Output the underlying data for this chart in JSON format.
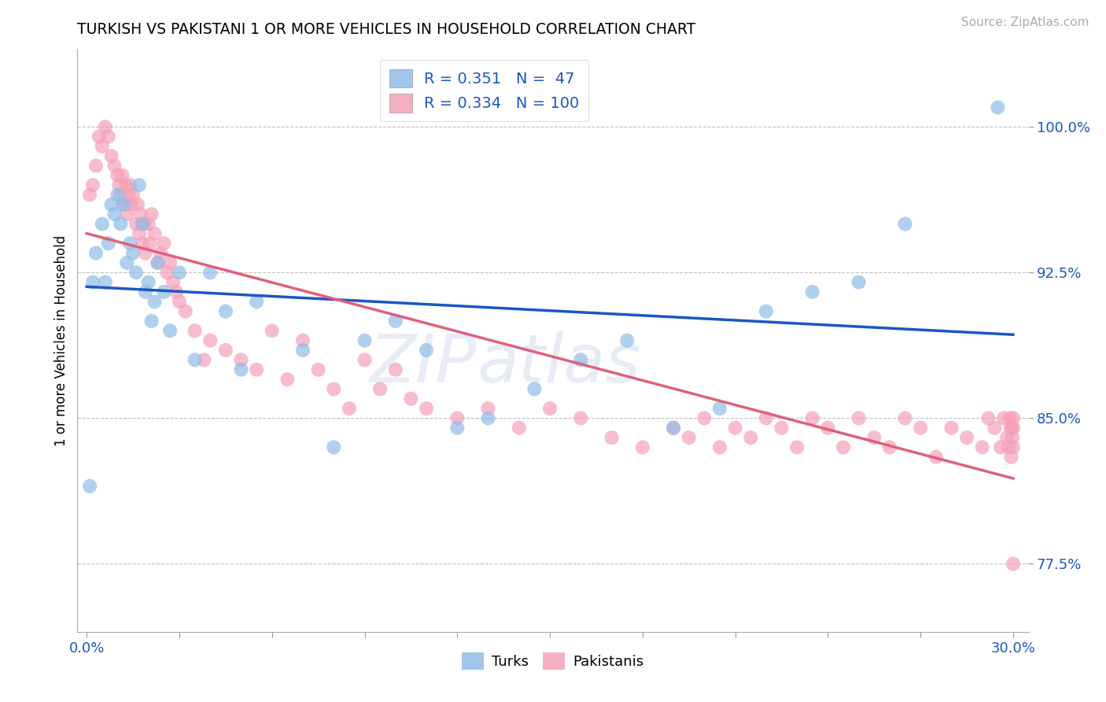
{
  "title": "TURKISH VS PAKISTANI 1 OR MORE VEHICLES IN HOUSEHOLD CORRELATION CHART",
  "source": "Source: ZipAtlas.com",
  "ylabel": "1 or more Vehicles in Household",
  "xlim_min": -0.3,
  "xlim_max": 30.5,
  "ylim_min": 74.0,
  "ylim_max": 104.0,
  "yticks": [
    77.5,
    85.0,
    92.5,
    100.0
  ],
  "ytick_labels": [
    "77.5%",
    "85.0%",
    "92.5%",
    "100.0%"
  ],
  "xtick_vals": [
    0.0,
    3.0,
    6.0,
    9.0,
    12.0,
    15.0,
    18.0,
    21.0,
    24.0,
    27.0,
    30.0
  ],
  "xtick_labels_show": [
    "0.0%",
    "",
    "",
    "",
    "",
    "",
    "",
    "",
    "",
    "",
    "30.0%"
  ],
  "turks_R": 0.351,
  "turks_N": 47,
  "pakis_R": 0.334,
  "pakis_N": 100,
  "turks_color": "#90bce8",
  "pakis_color": "#f5a0b8",
  "turks_line_color": "#1a56c4",
  "pakis_line_color": "#e0607a",
  "legend_label_turks": "Turks",
  "legend_label_pakis": "Pakistanis",
  "turks_x": [
    0.1,
    0.2,
    0.3,
    0.5,
    0.6,
    0.7,
    0.8,
    0.9,
    1.0,
    1.1,
    1.2,
    1.3,
    1.4,
    1.5,
    1.6,
    1.7,
    1.8,
    1.9,
    2.0,
    2.1,
    2.2,
    2.3,
    2.5,
    2.7,
    3.0,
    3.5,
    4.0,
    4.5,
    5.0,
    5.5,
    7.0,
    8.0,
    9.0,
    10.0,
    11.0,
    12.0,
    13.0,
    14.5,
    16.0,
    17.5,
    19.0,
    20.5,
    22.0,
    23.5,
    25.0,
    26.5,
    29.5
  ],
  "turks_y": [
    81.5,
    92.0,
    93.5,
    95.0,
    92.0,
    94.0,
    96.0,
    95.5,
    96.5,
    95.0,
    96.0,
    93.0,
    94.0,
    93.5,
    92.5,
    97.0,
    95.0,
    91.5,
    92.0,
    90.0,
    91.0,
    93.0,
    91.5,
    89.5,
    92.5,
    88.0,
    92.5,
    90.5,
    87.5,
    91.0,
    88.5,
    83.5,
    89.0,
    90.0,
    88.5,
    84.5,
    85.0,
    86.5,
    88.0,
    89.0,
    84.5,
    85.5,
    90.5,
    91.5,
    92.0,
    95.0,
    101.0
  ],
  "pakis_x": [
    0.1,
    0.2,
    0.3,
    0.4,
    0.5,
    0.6,
    0.7,
    0.8,
    0.9,
    1.0,
    1.05,
    1.1,
    1.15,
    1.2,
    1.25,
    1.3,
    1.35,
    1.4,
    1.45,
    1.5,
    1.6,
    1.65,
    1.7,
    1.75,
    1.8,
    1.85,
    1.9,
    2.0,
    2.05,
    2.1,
    2.2,
    2.3,
    2.4,
    2.5,
    2.6,
    2.7,
    2.8,
    2.9,
    3.0,
    3.2,
    3.5,
    3.8,
    4.0,
    4.5,
    5.0,
    5.5,
    6.0,
    6.5,
    7.0,
    7.5,
    8.0,
    8.5,
    9.0,
    9.5,
    10.0,
    10.5,
    11.0,
    12.0,
    13.0,
    14.0,
    15.0,
    16.0,
    17.0,
    18.0,
    19.0,
    19.5,
    20.0,
    20.5,
    21.0,
    21.5,
    22.0,
    22.5,
    23.0,
    23.5,
    24.0,
    24.5,
    25.0,
    25.5,
    26.0,
    26.5,
    27.0,
    27.5,
    28.0,
    28.5,
    29.0,
    29.2,
    29.4,
    29.6,
    29.7,
    29.8,
    29.85,
    29.9,
    29.92,
    29.94,
    29.96,
    29.98,
    30.0,
    30.0,
    30.0,
    30.0
  ],
  "pakis_y": [
    96.5,
    97.0,
    98.0,
    99.5,
    99.0,
    100.0,
    99.5,
    98.5,
    98.0,
    97.5,
    97.0,
    96.5,
    97.5,
    96.0,
    97.0,
    95.5,
    96.5,
    97.0,
    96.0,
    96.5,
    95.0,
    96.0,
    94.5,
    95.5,
    94.0,
    95.0,
    93.5,
    95.0,
    94.0,
    95.5,
    94.5,
    93.0,
    93.5,
    94.0,
    92.5,
    93.0,
    92.0,
    91.5,
    91.0,
    90.5,
    89.5,
    88.0,
    89.0,
    88.5,
    88.0,
    87.5,
    89.5,
    87.0,
    89.0,
    87.5,
    86.5,
    85.5,
    88.0,
    86.5,
    87.5,
    86.0,
    85.5,
    85.0,
    85.5,
    84.5,
    85.5,
    85.0,
    84.0,
    83.5,
    84.5,
    84.0,
    85.0,
    83.5,
    84.5,
    84.0,
    85.0,
    84.5,
    83.5,
    85.0,
    84.5,
    83.5,
    85.0,
    84.0,
    83.5,
    85.0,
    84.5,
    83.0,
    84.5,
    84.0,
    83.5,
    85.0,
    84.5,
    83.5,
    85.0,
    84.0,
    83.5,
    85.0,
    84.5,
    83.0,
    84.5,
    84.0,
    83.5,
    85.0,
    84.5,
    77.5
  ]
}
